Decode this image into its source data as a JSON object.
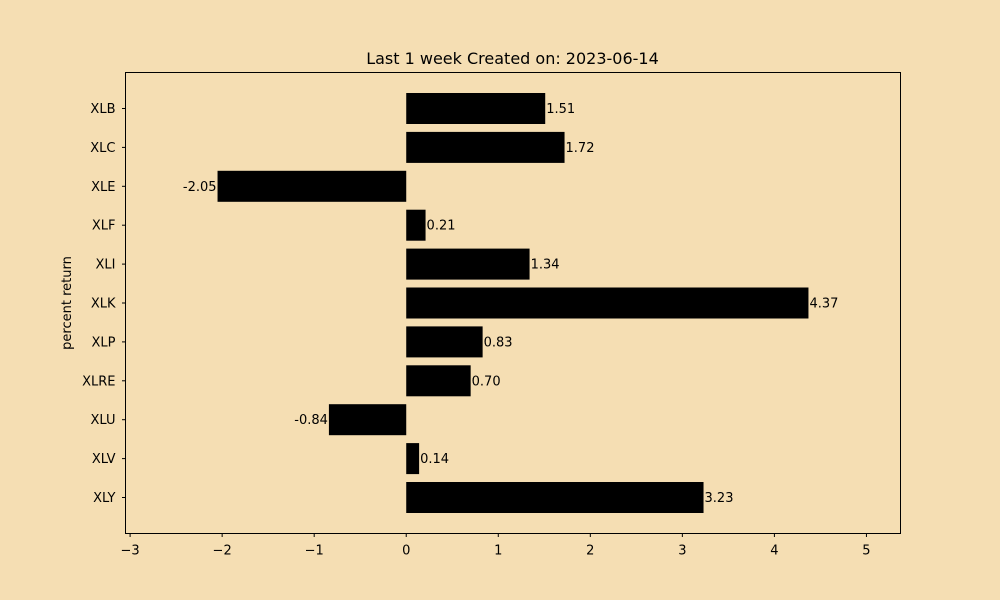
{
  "chart_data": {
    "type": "bar",
    "orientation": "horizontal",
    "title": "Last 1 week Created on: 2023-06-14",
    "xlabel": "",
    "ylabel": "percent return",
    "categories": [
      "XLB",
      "XLC",
      "XLE",
      "XLF",
      "XLI",
      "XLK",
      "XLP",
      "XLRE",
      "XLU",
      "XLV",
      "XLY"
    ],
    "values": [
      1.51,
      1.72,
      -2.05,
      0.21,
      1.34,
      4.37,
      0.83,
      0.7,
      -0.84,
      0.14,
      3.23
    ],
    "value_labels": [
      "1.51",
      "1.72",
      "-2.05",
      "0.21",
      "1.34",
      "4.37",
      "0.83",
      "0.70",
      "-0.84",
      "0.14",
      "3.23"
    ],
    "xlim": [
      -3.05,
      5.37
    ],
    "xticks": [
      -3,
      -2,
      -1,
      0,
      1,
      2,
      3,
      4,
      5
    ],
    "xtick_labels": [
      "−3",
      "−2",
      "−1",
      "0",
      "1",
      "2",
      "3",
      "4",
      "5"
    ],
    "grid": false,
    "legend": "none",
    "colors": {
      "background": "#f5deb3",
      "bar": "#000000",
      "axes": "#000000"
    }
  }
}
